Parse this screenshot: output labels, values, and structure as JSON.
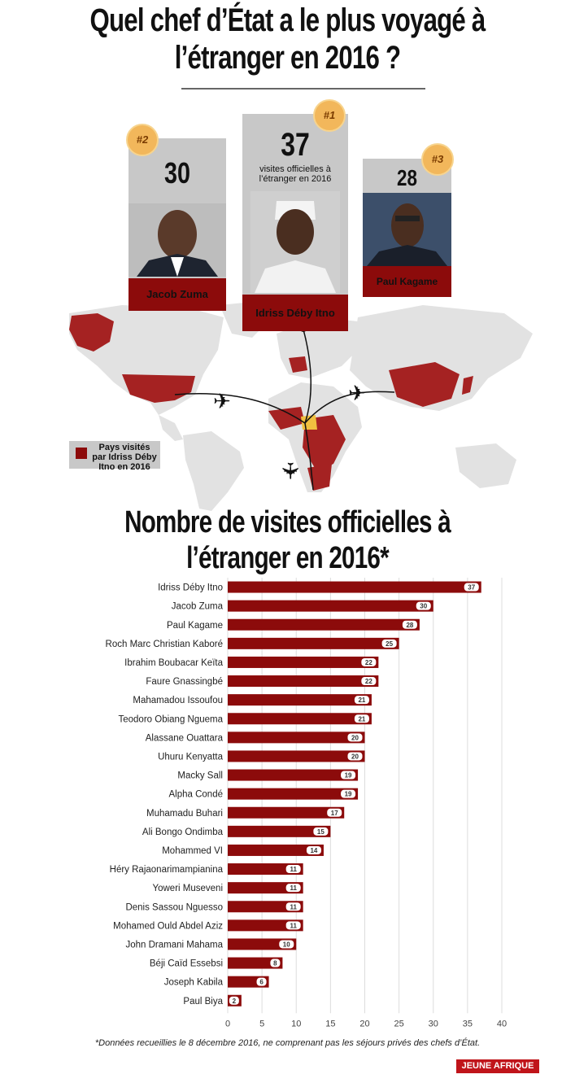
{
  "title": "Quel chef d’État a le plus voyagé à l’étranger en 2016 ?",
  "chart_title": "Nombre de visites officielles à l’étranger en 2016*",
  "top3": [
    {
      "rank": "#1",
      "visits": "37",
      "caption": "visites officielles à l’étranger en 2016",
      "name": "Idriss Déby Itno"
    },
    {
      "rank": "#2",
      "visits": "30",
      "name": "Jacob Zuma"
    },
    {
      "rank": "#3",
      "visits": "28",
      "name": "Paul Kagame"
    }
  ],
  "legend": "Pays visités par Idriss Déby Itno en 2016",
  "footnote": "*Données recueillies le 8 décembre 2016, ne comprenant pas les séjours privés des chefs d’État.",
  "logo": "JEUNE AFRIQUE",
  "colors": {
    "bar": "#8c0b0b",
    "card": "#c8c8c8",
    "badge": "#f2b75b"
  },
  "chart_data": {
    "type": "bar",
    "orientation": "horizontal",
    "categories": [
      "Idriss Déby Itno",
      "Jacob Zuma",
      "Paul Kagame",
      "Roch Marc Christian Kaboré",
      "Ibrahim Boubacar Keïta",
      "Faure Gnassingbé",
      "Mahamadou Issoufou",
      "Teodoro Obiang Nguema",
      "Alassane Ouattara",
      "Uhuru Kenyatta",
      "Macky Sall",
      "Alpha Condé",
      "Muhamadu Buhari",
      "Ali Bongo Ondimba",
      "Mohammed VI",
      "Héry Rajaonarimampianina",
      "Yoweri Museveni",
      "Denis Sassou Nguesso",
      "Mohamed Ould Abdel Aziz",
      "John Dramani Mahama",
      "Béji Caïd Essebsi",
      "Joseph Kabila",
      "Paul Biya"
    ],
    "values": [
      37,
      30,
      28,
      25,
      22,
      22,
      21,
      21,
      20,
      20,
      19,
      19,
      17,
      15,
      14,
      11,
      11,
      11,
      11,
      10,
      8,
      6,
      2
    ],
    "xlim": [
      0,
      40
    ],
    "xticks": [
      0,
      5,
      10,
      15,
      20,
      25,
      30,
      35,
      40
    ],
    "grid": true,
    "data_labels": true
  }
}
